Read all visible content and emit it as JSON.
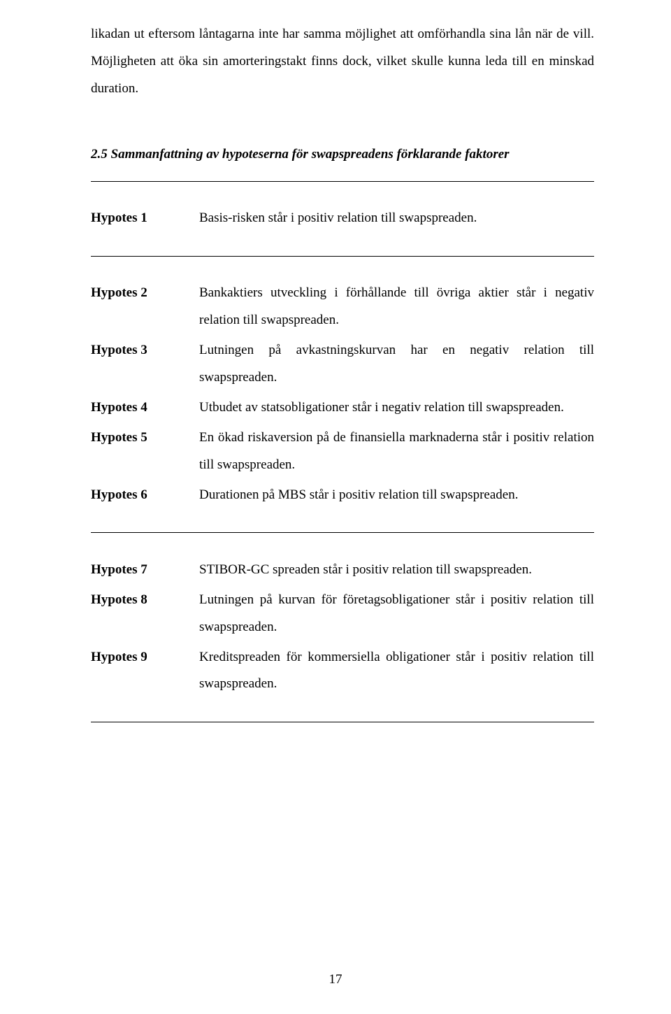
{
  "intro": "likadan ut eftersom låntagarna inte har samma möjlighet att omförhandla sina lån när de vill. Möjligheten att öka sin amorteringstakt finns dock, vilket skulle kunna leda till en minskad duration.",
  "heading": "2.5 Sammanfattning av hypoteserna för swapspreadens förklarande faktorer",
  "groups": [
    [
      {
        "label": "Hypotes 1",
        "desc": "Basis-risken står i positiv relation till swapspreaden."
      }
    ],
    [
      {
        "label": "Hypotes 2",
        "desc": "Bankaktiers utveckling i förhållande till övriga aktier står i negativ relation till swapspreaden."
      },
      {
        "label": "Hypotes 3",
        "desc": "Lutningen på avkastningskurvan har en negativ relation till swapspreaden."
      },
      {
        "label": "Hypotes 4",
        "desc": "Utbudet av statsobligationer står i negativ relation till swapspreaden."
      },
      {
        "label": "Hypotes 5",
        "desc": "En ökad riskaversion på de finansiella marknaderna står i positiv relation till swapspreaden."
      },
      {
        "label": "Hypotes 6",
        "desc": "Durationen på MBS står i positiv relation till swapspreaden."
      }
    ],
    [
      {
        "label": "Hypotes 7",
        "desc": "STIBOR-GC spreaden står i positiv relation till swapspreaden."
      },
      {
        "label": "Hypotes 8",
        "desc": "Lutningen på kurvan för företagsobligationer står i positiv relation till swapspreaden."
      },
      {
        "label": "Hypotes 9",
        "desc": "Kreditspreaden för kommersiella obligationer står i positiv relation till swapspreaden."
      }
    ]
  ],
  "pageNumber": "17"
}
